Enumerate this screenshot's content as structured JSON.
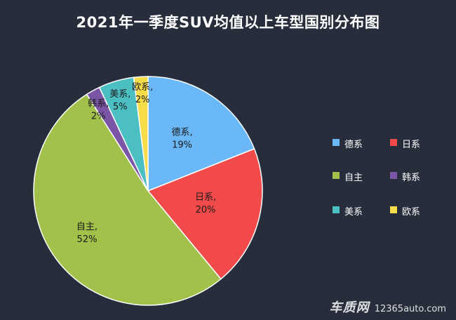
{
  "chart_data": {
    "type": "pie",
    "title": "2021年一季度SUV均值以上车型国别分布图",
    "slices": [
      {
        "name": "德系",
        "value": 19,
        "label": "19%",
        "color": "#6ab8f7"
      },
      {
        "name": "日系",
        "value": 20,
        "label": "20%",
        "color": "#f24a4a"
      },
      {
        "name": "自主",
        "value": 52,
        "label": "52%",
        "color": "#a2c14a"
      },
      {
        "name": "韩系",
        "value": 2,
        "label": "2%",
        "color": "#7b55a6"
      },
      {
        "name": "美系",
        "value": 5,
        "label": "5%",
        "color": "#4cbfc3"
      },
      {
        "name": "欧系",
        "value": 2,
        "label": "2%",
        "color": "#f7dc4a"
      }
    ],
    "legend_position": "right",
    "legend": [
      {
        "name": "德系",
        "color": "#6ab8f7"
      },
      {
        "name": "日系",
        "color": "#f24a4a"
      },
      {
        "name": "自主",
        "color": "#a2c14a"
      },
      {
        "name": "韩系",
        "color": "#7b55a6"
      },
      {
        "name": "美系",
        "color": "#4cbfc3"
      },
      {
        "name": "欧系",
        "color": "#f7dc4a"
      }
    ]
  },
  "colors": {
    "background": "#272d3b",
    "text": "#ffffff",
    "label_text": "#1a1a1a"
  },
  "watermark": {
    "logo": "车质网",
    "url": "12365auto.com"
  }
}
